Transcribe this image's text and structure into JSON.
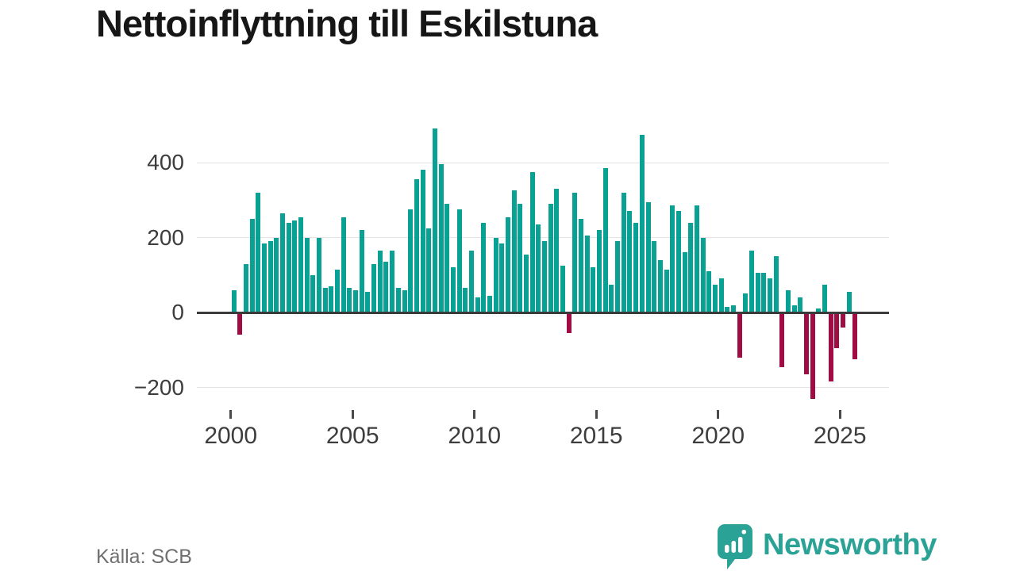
{
  "title": "Nettoinflyttning till Eskilstuna",
  "source": "Källa: SCB",
  "brand": {
    "name": "Newsworthy",
    "color": "#2aa295"
  },
  "chart_data": {
    "type": "bar",
    "title": "Nettoinflyttning till Eskilstuna",
    "xlabel": "",
    "ylabel": "",
    "frequency": "quarterly",
    "start_year": 2000,
    "start_quarter": 1,
    "end_year": 2025,
    "end_quarter": 3,
    "values": [
      60,
      -60,
      130,
      250,
      320,
      185,
      190,
      200,
      265,
      240,
      245,
      255,
      200,
      100,
      200,
      65,
      70,
      115,
      255,
      65,
      60,
      220,
      55,
      130,
      165,
      135,
      165,
      65,
      60,
      275,
      355,
      380,
      225,
      490,
      395,
      290,
      120,
      275,
      65,
      165,
      40,
      240,
      45,
      200,
      185,
      255,
      325,
      290,
      155,
      375,
      235,
      190,
      290,
      330,
      125,
      -55,
      320,
      250,
      205,
      120,
      220,
      385,
      75,
      190,
      320,
      270,
      240,
      475,
      295,
      190,
      140,
      115,
      285,
      270,
      160,
      240,
      285,
      200,
      110,
      75,
      90,
      15,
      20,
      -120,
      50,
      165,
      105,
      105,
      90,
      150,
      -145,
      60,
      20,
      40,
      -165,
      -230,
      10,
      75,
      -185,
      -95,
      -40,
      55,
      -125
    ],
    "x_tick_years": [
      2000,
      2005,
      2010,
      2015,
      2020,
      2025
    ],
    "x_tick_labels": [
      "2000",
      "2005",
      "2010",
      "2015",
      "2020",
      "2025"
    ],
    "y_ticks": [
      400,
      200,
      0,
      -200
    ],
    "y_tick_labels": [
      "400",
      "200",
      "0",
      "−200"
    ],
    "ylim": [
      -260,
      520
    ],
    "grid": "horizontal",
    "legend": "none",
    "colors": {
      "positive": "#0aa195",
      "negative": "#a00d44",
      "gridline": "#e2e2e2",
      "zeroline": "#3a3a3a"
    }
  }
}
